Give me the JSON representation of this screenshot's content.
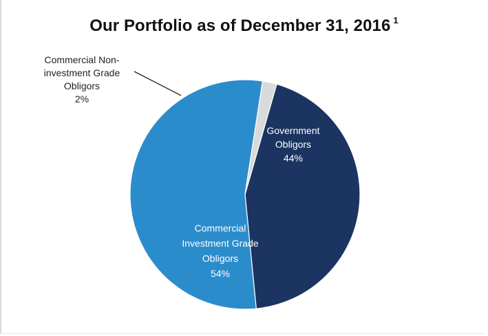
{
  "title": "Our Portfolio as of December 31, 2016",
  "footnote_marker": "1",
  "chart_data": {
    "type": "pie",
    "title": "Our Portfolio as of December 31, 2016",
    "slices": [
      {
        "label_lines": [
          "Government",
          "Obligors"
        ],
        "value": 44,
        "value_label": "44%",
        "color": "#1b3461"
      },
      {
        "label_lines": [
          "Commercial",
          "Investment Grade",
          "Obligors"
        ],
        "value": 54,
        "value_label": "54%",
        "color": "#2b8ccc"
      },
      {
        "label_lines": [
          "Commercial Non-",
          "investment Grade",
          "Obligors"
        ],
        "value": 2,
        "value_label": "2%",
        "color": "#d9dadb"
      }
    ]
  }
}
